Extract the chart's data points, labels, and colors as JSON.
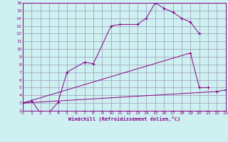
{
  "xlabel": "Windchill (Refroidissement éolien,°C)",
  "bg_color": "#cff0f0",
  "grid_color": "#9999bb",
  "line_color": "#880088",
  "series": [
    {
      "x": [
        0,
        1,
        2,
        3,
        4,
        5,
        7,
        8,
        10,
        11,
        13,
        14,
        15,
        16,
        17,
        18,
        19,
        20
      ],
      "y": [
        3.0,
        3.3,
        1.7,
        1.8,
        3.1,
        7.0,
        8.3,
        8.1,
        13.0,
        13.2,
        13.2,
        14.0,
        16.0,
        15.3,
        14.8,
        14.0,
        13.5,
        12.0
      ]
    },
    {
      "x": [
        0,
        19,
        20,
        21
      ],
      "y": [
        3.0,
        9.5,
        5.0,
        5.0
      ]
    },
    {
      "x": [
        0,
        22,
        23
      ],
      "y": [
        3.0,
        4.5,
        4.7
      ]
    }
  ],
  "ylim": [
    2,
    16
  ],
  "xlim": [
    0,
    23
  ],
  "yticks": [
    2,
    3,
    4,
    5,
    6,
    7,
    8,
    9,
    10,
    11,
    12,
    13,
    14,
    15,
    16
  ],
  "xticks": [
    0,
    1,
    2,
    3,
    4,
    5,
    6,
    7,
    8,
    9,
    10,
    11,
    12,
    13,
    14,
    15,
    16,
    17,
    18,
    19,
    20,
    21,
    22,
    23
  ]
}
